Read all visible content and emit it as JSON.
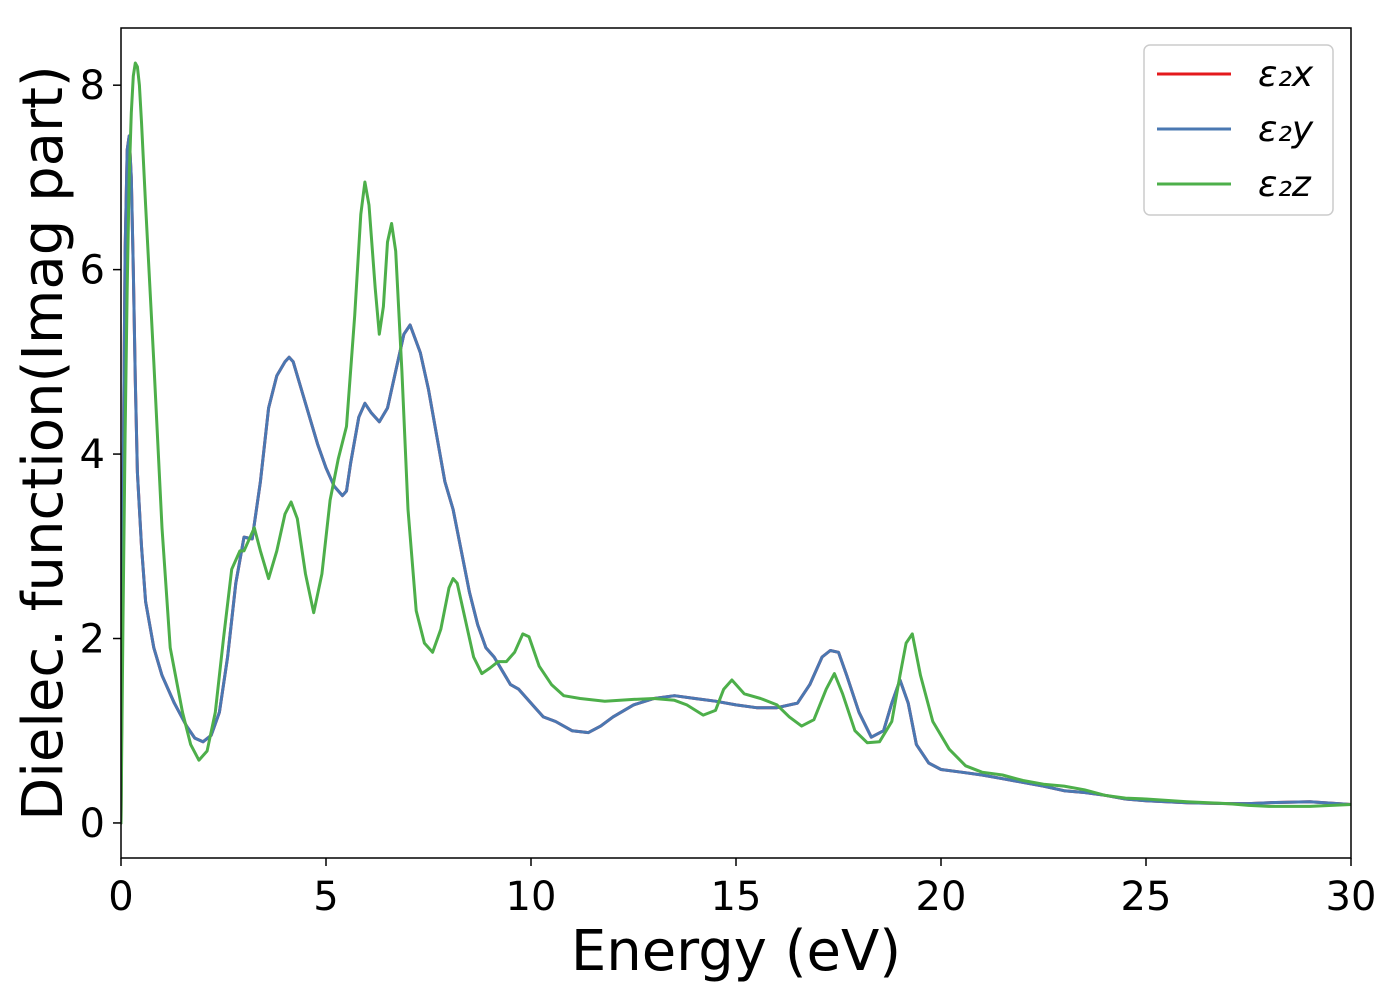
{
  "chart_data": {
    "type": "line",
    "title": "",
    "xlabel": "Energy (eV)",
    "ylabel": "Dielec. function(Imag part)",
    "xlim": [
      0,
      30
    ],
    "ylim": [
      -0.38,
      8.62
    ],
    "xticks": [
      0,
      5,
      10,
      15,
      20,
      25,
      30
    ],
    "yticks": [
      0,
      2,
      4,
      6,
      8
    ],
    "grid": false,
    "legend_position": "top-right",
    "series": [
      {
        "name": "ε₂x",
        "color": "#e41a1c",
        "x": [
          0,
          0.05,
          0.1,
          0.15,
          0.2,
          0.25,
          0.3,
          0.35,
          0.4,
          0.5,
          0.6,
          0.8,
          1.0,
          1.3,
          1.6,
          1.8,
          2.0,
          2.2,
          2.4,
          2.6,
          2.8,
          3.0,
          3.2,
          3.4,
          3.6,
          3.8,
          4.0,
          4.1,
          4.2,
          4.4,
          4.6,
          4.8,
          5.0,
          5.2,
          5.4,
          5.5,
          5.6,
          5.8,
          5.95,
          6.1,
          6.3,
          6.5,
          6.7,
          6.9,
          7.05,
          7.3,
          7.5,
          7.7,
          7.9,
          8.1,
          8.3,
          8.5,
          8.7,
          8.9,
          9.1,
          9.3,
          9.5,
          9.7,
          9.9,
          10.1,
          10.3,
          10.6,
          11.0,
          11.4,
          11.7,
          12.0,
          12.5,
          13.0,
          13.5,
          14.0,
          14.5,
          15.0,
          15.5,
          16.0,
          16.5,
          16.8,
          17.1,
          17.3,
          17.5,
          17.7,
          18.0,
          18.3,
          18.6,
          18.8,
          19.0,
          19.2,
          19.4,
          19.7,
          20.0,
          20.5,
          21.0,
          21.5,
          22.0,
          22.5,
          23.0,
          23.5,
          24.0,
          24.5,
          25.0,
          26.0,
          27.0,
          27.5,
          28.0,
          29.0,
          30.0
        ],
        "y": [
          0,
          3.5,
          6.2,
          7.3,
          7.45,
          7.0,
          6.0,
          4.8,
          3.8,
          3.0,
          2.4,
          1.9,
          1.6,
          1.3,
          1.05,
          0.92,
          0.88,
          0.95,
          1.2,
          1.8,
          2.6,
          3.1,
          3.08,
          3.7,
          4.5,
          4.85,
          5.0,
          5.05,
          5.0,
          4.7,
          4.4,
          4.1,
          3.85,
          3.65,
          3.55,
          3.6,
          3.9,
          4.4,
          4.55,
          4.45,
          4.35,
          4.5,
          4.9,
          5.3,
          5.4,
          5.1,
          4.7,
          4.2,
          3.7,
          3.4,
          2.95,
          2.5,
          2.15,
          1.9,
          1.8,
          1.65,
          1.5,
          1.45,
          1.35,
          1.25,
          1.15,
          1.1,
          1.0,
          0.98,
          1.05,
          1.15,
          1.28,
          1.35,
          1.38,
          1.35,
          1.32,
          1.28,
          1.25,
          1.25,
          1.3,
          1.5,
          1.8,
          1.87,
          1.85,
          1.6,
          1.2,
          0.93,
          1.0,
          1.3,
          1.55,
          1.3,
          0.85,
          0.65,
          0.58,
          0.55,
          0.52,
          0.48,
          0.44,
          0.4,
          0.35,
          0.33,
          0.3,
          0.26,
          0.24,
          0.22,
          0.21,
          0.21,
          0.22,
          0.23,
          0.2
        ]
      },
      {
        "name": "ε₂y",
        "color": "#4a78b2",
        "x": [
          0,
          0.05,
          0.1,
          0.15,
          0.2,
          0.25,
          0.3,
          0.35,
          0.4,
          0.5,
          0.6,
          0.8,
          1.0,
          1.3,
          1.6,
          1.8,
          2.0,
          2.2,
          2.4,
          2.6,
          2.8,
          3.0,
          3.2,
          3.4,
          3.6,
          3.8,
          4.0,
          4.1,
          4.2,
          4.4,
          4.6,
          4.8,
          5.0,
          5.2,
          5.4,
          5.5,
          5.6,
          5.8,
          5.95,
          6.1,
          6.3,
          6.5,
          6.7,
          6.9,
          7.05,
          7.3,
          7.5,
          7.7,
          7.9,
          8.1,
          8.3,
          8.5,
          8.7,
          8.9,
          9.1,
          9.3,
          9.5,
          9.7,
          9.9,
          10.1,
          10.3,
          10.6,
          11.0,
          11.4,
          11.7,
          12.0,
          12.5,
          13.0,
          13.5,
          14.0,
          14.5,
          15.0,
          15.5,
          16.0,
          16.5,
          16.8,
          17.1,
          17.3,
          17.5,
          17.7,
          18.0,
          18.3,
          18.6,
          18.8,
          19.0,
          19.2,
          19.4,
          19.7,
          20.0,
          20.5,
          21.0,
          21.5,
          22.0,
          22.5,
          23.0,
          23.5,
          24.0,
          24.5,
          25.0,
          26.0,
          27.0,
          27.5,
          28.0,
          29.0,
          30.0
        ],
        "y": [
          0,
          3.5,
          6.2,
          7.3,
          7.45,
          7.0,
          6.0,
          4.8,
          3.8,
          3.0,
          2.4,
          1.9,
          1.6,
          1.3,
          1.05,
          0.92,
          0.88,
          0.95,
          1.2,
          1.8,
          2.6,
          3.1,
          3.08,
          3.7,
          4.5,
          4.85,
          5.0,
          5.05,
          5.0,
          4.7,
          4.4,
          4.1,
          3.85,
          3.65,
          3.55,
          3.6,
          3.9,
          4.4,
          4.55,
          4.45,
          4.35,
          4.5,
          4.9,
          5.3,
          5.4,
          5.1,
          4.7,
          4.2,
          3.7,
          3.4,
          2.95,
          2.5,
          2.15,
          1.9,
          1.8,
          1.65,
          1.5,
          1.45,
          1.35,
          1.25,
          1.15,
          1.1,
          1.0,
          0.98,
          1.05,
          1.15,
          1.28,
          1.35,
          1.38,
          1.35,
          1.32,
          1.28,
          1.25,
          1.25,
          1.3,
          1.5,
          1.8,
          1.87,
          1.85,
          1.6,
          1.2,
          0.93,
          1.0,
          1.3,
          1.55,
          1.3,
          0.85,
          0.65,
          0.58,
          0.55,
          0.52,
          0.48,
          0.44,
          0.4,
          0.35,
          0.33,
          0.3,
          0.26,
          0.24,
          0.22,
          0.21,
          0.21,
          0.22,
          0.23,
          0.2
        ]
      },
      {
        "name": "ε₂z",
        "color": "#4daf4a",
        "x": [
          0,
          0.05,
          0.1,
          0.15,
          0.2,
          0.25,
          0.3,
          0.35,
          0.4,
          0.45,
          0.5,
          0.6,
          0.8,
          1.0,
          1.2,
          1.5,
          1.7,
          1.9,
          2.1,
          2.3,
          2.5,
          2.7,
          2.9,
          3.0,
          3.1,
          3.25,
          3.4,
          3.6,
          3.8,
          4.0,
          4.15,
          4.3,
          4.5,
          4.7,
          4.9,
          5.1,
          5.3,
          5.5,
          5.7,
          5.85,
          5.95,
          6.05,
          6.2,
          6.3,
          6.4,
          6.5,
          6.6,
          6.7,
          6.85,
          7.0,
          7.2,
          7.4,
          7.6,
          7.8,
          8.0,
          8.1,
          8.2,
          8.4,
          8.6,
          8.8,
          9.0,
          9.2,
          9.4,
          9.6,
          9.8,
          9.95,
          10.2,
          10.5,
          10.8,
          11.2,
          11.8,
          12.5,
          13.0,
          13.5,
          13.8,
          14.2,
          14.5,
          14.7,
          14.9,
          15.2,
          15.6,
          16.0,
          16.3,
          16.6,
          16.9,
          17.2,
          17.4,
          17.6,
          17.9,
          18.2,
          18.5,
          18.8,
          19.0,
          19.15,
          19.3,
          19.5,
          19.8,
          20.2,
          20.6,
          21.0,
          21.5,
          22.0,
          22.5,
          23.0,
          23.5,
          24.0,
          24.5,
          25.0,
          26.0,
          27.0,
          27.5,
          28.0,
          29.0,
          30.0
        ],
        "y": [
          0,
          2.2,
          4.2,
          5.8,
          7.0,
          7.7,
          8.1,
          8.24,
          8.2,
          8.0,
          7.6,
          6.7,
          5.0,
          3.2,
          1.9,
          1.2,
          0.85,
          0.68,
          0.78,
          1.2,
          2.0,
          2.75,
          2.95,
          2.95,
          3.05,
          3.2,
          2.95,
          2.65,
          2.95,
          3.35,
          3.48,
          3.3,
          2.7,
          2.28,
          2.7,
          3.5,
          3.95,
          4.3,
          5.5,
          6.6,
          6.95,
          6.7,
          5.8,
          5.3,
          5.6,
          6.3,
          6.5,
          6.2,
          4.9,
          3.4,
          2.3,
          1.95,
          1.85,
          2.1,
          2.55,
          2.65,
          2.6,
          2.2,
          1.8,
          1.62,
          1.68,
          1.75,
          1.75,
          1.85,
          2.05,
          2.02,
          1.7,
          1.5,
          1.38,
          1.35,
          1.32,
          1.34,
          1.35,
          1.33,
          1.28,
          1.17,
          1.22,
          1.45,
          1.55,
          1.4,
          1.35,
          1.28,
          1.15,
          1.05,
          1.12,
          1.45,
          1.62,
          1.4,
          1.0,
          0.87,
          0.88,
          1.1,
          1.6,
          1.95,
          2.05,
          1.6,
          1.1,
          0.8,
          0.62,
          0.55,
          0.52,
          0.46,
          0.42,
          0.4,
          0.36,
          0.3,
          0.27,
          0.26,
          0.23,
          0.21,
          0.19,
          0.18,
          0.18,
          0.2
        ]
      }
    ]
  }
}
